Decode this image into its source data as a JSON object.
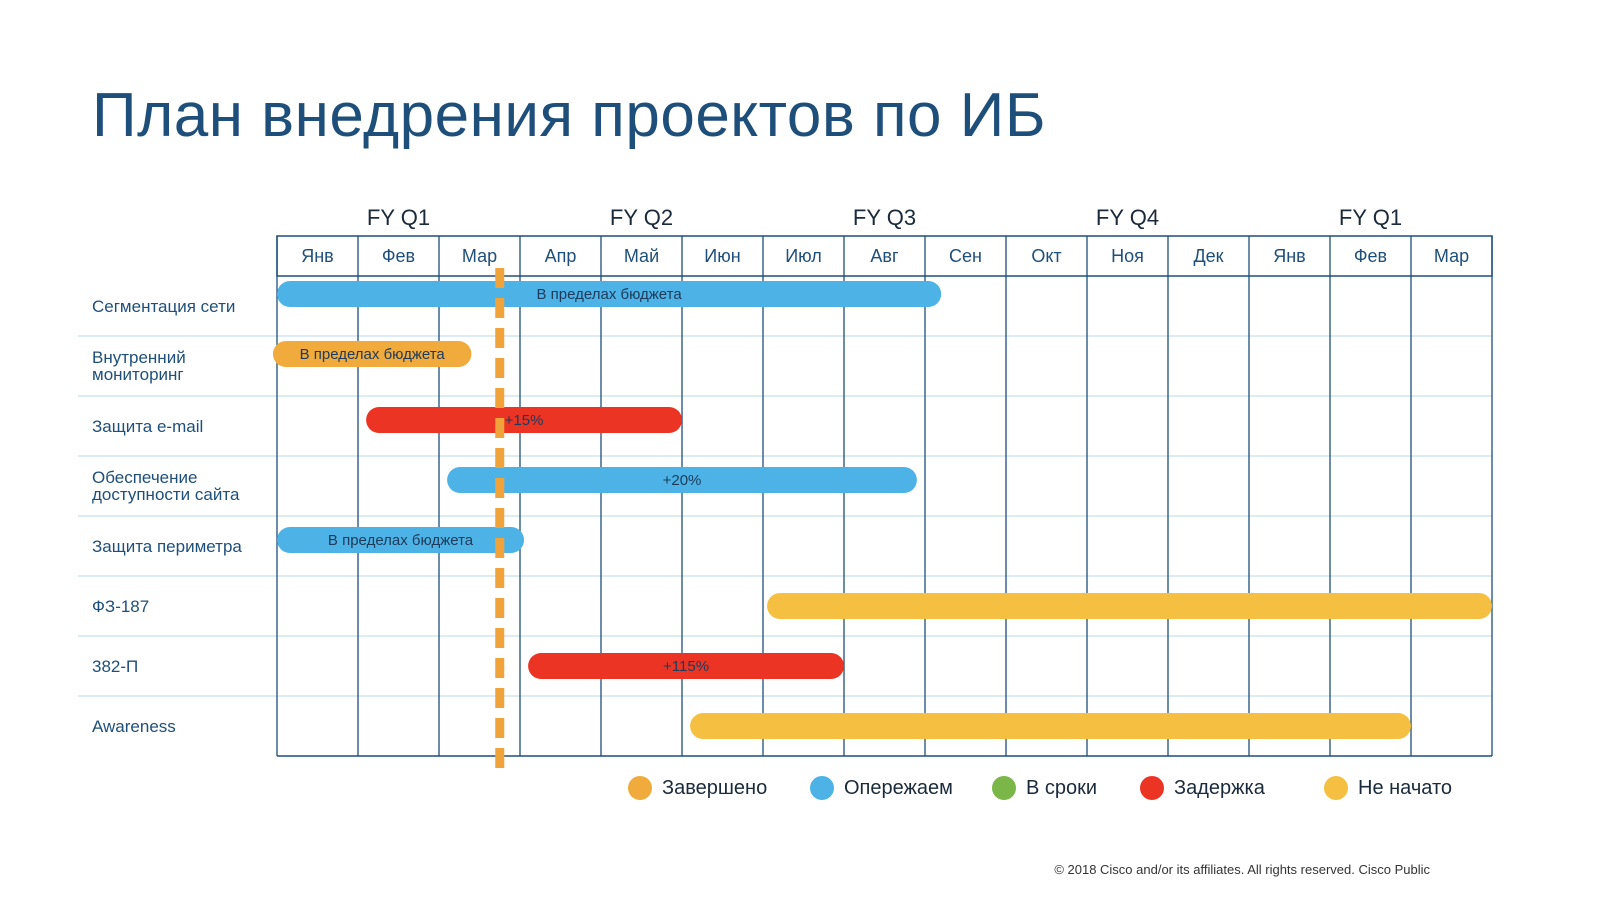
{
  "title": "План внедрения проектов по ИБ",
  "footer": {
    "copyright": "© 2018  Cisco and/or its affiliates. All rights reserved.   Cisco Public"
  },
  "legend": [
    {
      "label": "Завершено",
      "color": "#f0ab3c"
    },
    {
      "label": "Опережаем",
      "color": "#4db3e6"
    },
    {
      "label": "В сроки",
      "color": "#7ab648"
    },
    {
      "label": "Задержка",
      "color": "#ec3424"
    },
    {
      "label": "Не начато",
      "color": "#f5c042"
    }
  ],
  "chart_data": {
    "type": "gantt",
    "quarters": [
      {
        "label": "FY Q1"
      },
      {
        "label": "FY Q2"
      },
      {
        "label": "FY Q3"
      },
      {
        "label": "FY Q4"
      },
      {
        "label": "FY Q1"
      }
    ],
    "months": [
      "Янв",
      "Фев",
      "Мар",
      "Апр",
      "Май",
      "Июн",
      "Июл",
      "Авг",
      "Сен",
      "Окт",
      "Ноя",
      "Дек",
      "Янв",
      "Фев",
      "Мар"
    ],
    "current_date_month": 2.75,
    "tasks": [
      {
        "name": "Сегментация сети",
        "start": 0.0,
        "end": 8.2,
        "status": "Опережаем",
        "color": "#4db3e6",
        "label": "В пределах бюджета"
      },
      {
        "name": "Внутренний мониторинг",
        "start": -0.05,
        "end": 2.4,
        "status": "Завершено",
        "color": "#f0ab3c",
        "label": "В пределах бюджета"
      },
      {
        "name": "Защита e-mail",
        "start": 1.1,
        "end": 5.0,
        "status": "Задержка",
        "color": "#ec3424",
        "label": "+15%"
      },
      {
        "name": "Обеспечение доступности сайта",
        "start": 2.1,
        "end": 7.9,
        "status": "Опережаем",
        "color": "#4db3e6",
        "label": "+20%"
      },
      {
        "name": "Защита периметра",
        "start": 0.0,
        "end": 3.05,
        "status": "Опережаем",
        "color": "#4db3e6",
        "label": "В пределах бюджета"
      },
      {
        "name": "ФЗ-187",
        "start": 6.05,
        "end": 15.0,
        "status": "Не начато",
        "color": "#f5c042",
        "label": ""
      },
      {
        "name": "382-П",
        "start": 3.1,
        "end": 7.0,
        "status": "Задержка",
        "color": "#ec3424",
        "label": "+115%"
      },
      {
        "name": "Awareness",
        "start": 5.1,
        "end": 14.0,
        "status": "Не начато",
        "color": "#f5c042",
        "label": ""
      }
    ],
    "task_label_lines": [
      [
        "Сегментация сети"
      ],
      [
        "Внутренний",
        "мониторинг"
      ],
      [
        "Защита e-mail"
      ],
      [
        "Обеспечение",
        "доступности сайта"
      ],
      [
        "Защита периметра"
      ],
      [
        "ФЗ-187"
      ],
      [
        "382-П"
      ],
      [
        "Awareness"
      ]
    ]
  }
}
